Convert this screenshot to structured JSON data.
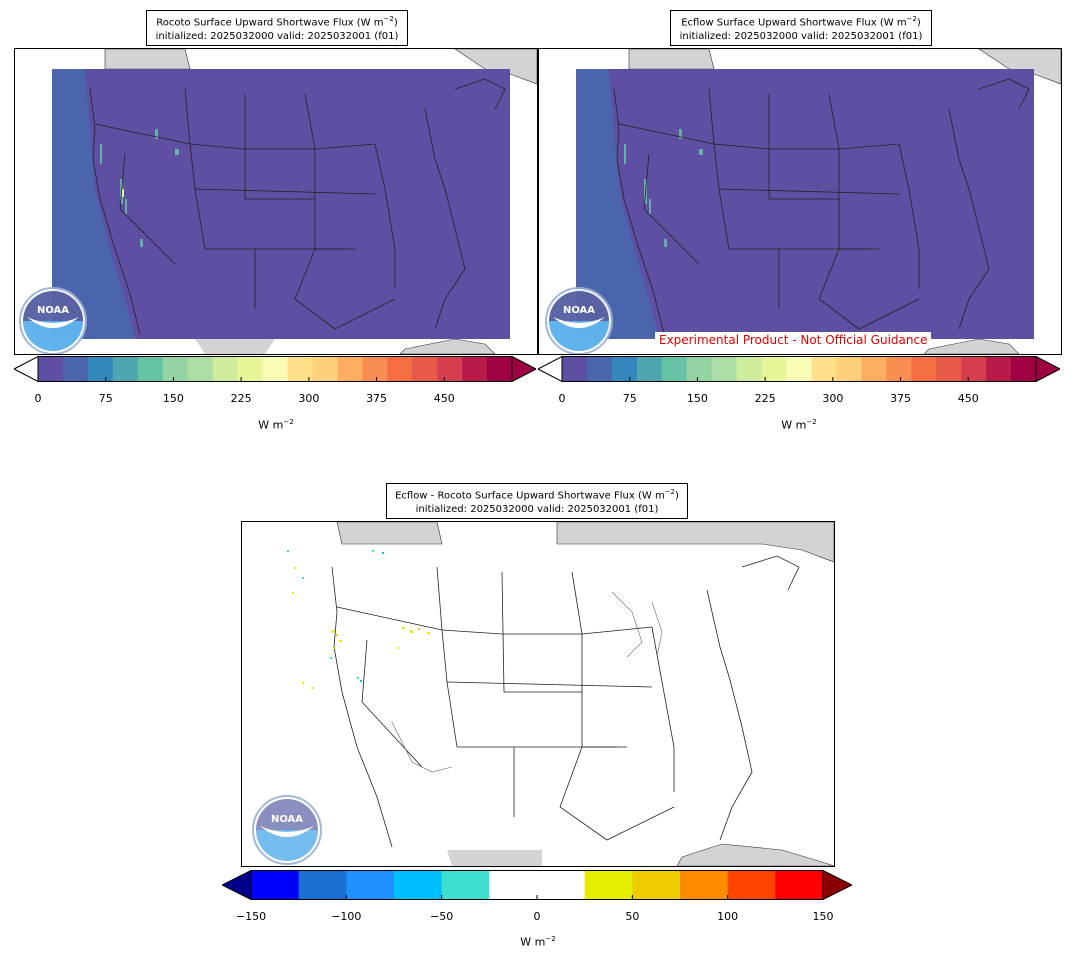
{
  "panels": [
    {
      "id": "rocoto",
      "title_line1": "Rocoto Surface Upward Shortwave Flux (W m",
      "title_line2": "initialized: 2025032000 valid: 2025032001 (f01)",
      "field": "flux"
    },
    {
      "id": "ecflow",
      "title_line1": "Ecflow Surface Upward Shortwave Flux (W m",
      "title_line2": "initialized: 2025032000 valid: 2025032001 (f01)",
      "field": "flux"
    },
    {
      "id": "diff",
      "title_line1": "Ecflow - Rocoto Surface Upward Shortwave Flux (W m",
      "title_line2": "initialized: 2025032000 valid: 2025032001 (f01)",
      "field": "diff"
    }
  ],
  "title_exponent": "−2",
  "title_close": ")",
  "experimental_note": "Experimental Product - Not Official Guidance",
  "logo_text": "NOAA",
  "flux_colorbar": {
    "ticks": [
      "0",
      "75",
      "150",
      "225",
      "300",
      "375",
      "450"
    ],
    "tick_values": [
      0,
      75,
      150,
      225,
      300,
      375,
      450
    ],
    "range": [
      0,
      525
    ],
    "unit": "W m",
    "unit_exp": "−2",
    "colors": [
      "#5e4fa2",
      "#4a66ad",
      "#3288bd",
      "#4ea6b0",
      "#66c2a5",
      "#94d4a4",
      "#abdda4",
      "#cfec9d",
      "#e6f598",
      "#f8fcb4",
      "#fee08b",
      "#fdd07e",
      "#fdae61",
      "#f98e52",
      "#f46d43",
      "#e75948",
      "#d53e4f",
      "#b81b49",
      "#9e0142"
    ],
    "under_color": "#ffffff",
    "over_color": "#9e0142"
  },
  "diff_colorbar": {
    "ticks": [
      "−150",
      "−100",
      "−50",
      "0",
      "50",
      "100",
      "150"
    ],
    "tick_values": [
      -150,
      -100,
      -50,
      0,
      50,
      100,
      150
    ],
    "range": [
      -150,
      150
    ],
    "unit": "W m",
    "unit_exp": "−2",
    "colors": [
      "#0000ff",
      "#1c6fd0",
      "#1e90ff",
      "#00bfff",
      "#40e0d0",
      "#ffffff",
      "#ffffff",
      "#e5ee00",
      "#eecc00",
      "#ff8c00",
      "#ff4500",
      "#ff0000"
    ],
    "under_color": "#00008b",
    "over_color": "#8b0000"
  },
  "colors": {
    "flux_background": "#5e4fa2",
    "west_coast_tint": "#4a66ad",
    "land_outside": "#d3d3d3"
  }
}
